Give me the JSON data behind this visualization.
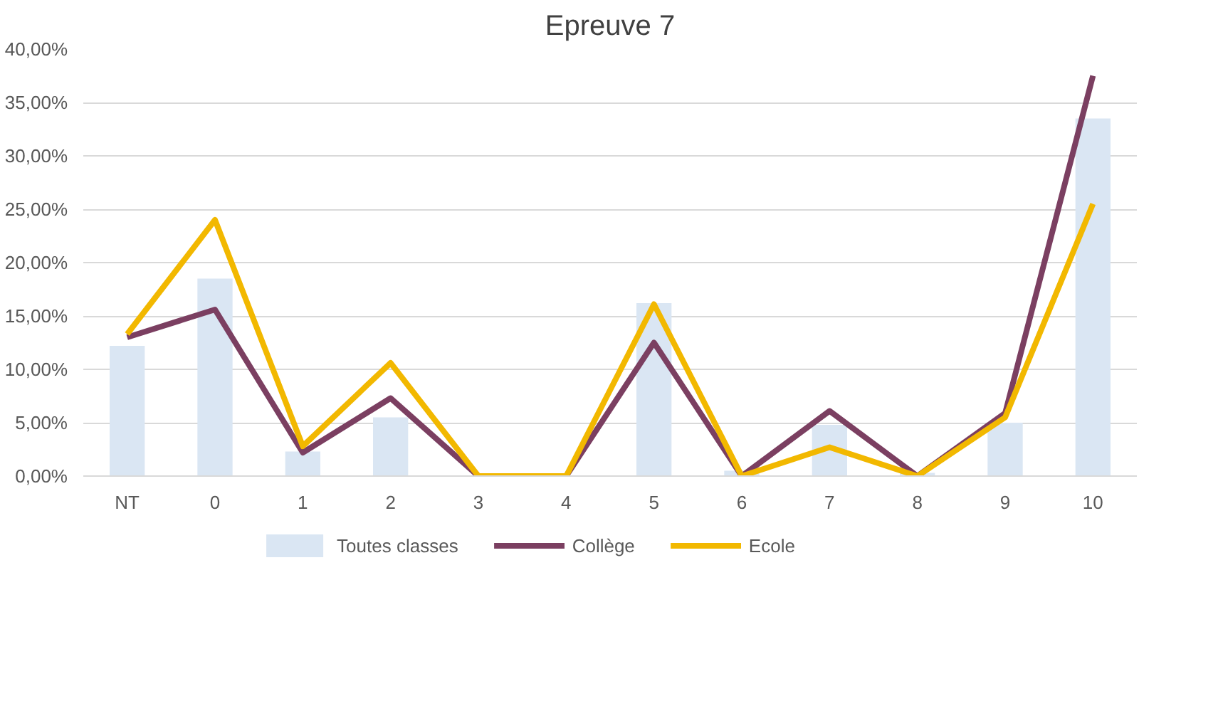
{
  "chart_data": {
    "type": "line",
    "title": "Epreuve 7",
    "categories": [
      "NT",
      "0",
      "1",
      "2",
      "3",
      "4",
      "5",
      "6",
      "7",
      "8",
      "9",
      "10"
    ],
    "series": [
      {
        "name": "Toutes classes",
        "type": "bar",
        "color": "#dae6f3",
        "values": [
          12.2,
          18.5,
          2.3,
          5.5,
          0,
          0,
          16.2,
          0.5,
          4.8,
          0.3,
          5,
          33.5
        ]
      },
      {
        "name": "Collège",
        "color": "#7b3f61",
        "values": [
          13,
          15.6,
          2.2,
          7.3,
          0,
          0,
          12.5,
          0,
          6.1,
          0,
          5.9,
          37.5
        ]
      },
      {
        "name": "Ecole",
        "color": "#f2b800",
        "values": [
          13.3,
          24,
          2.8,
          10.6,
          0,
          0,
          16.1,
          0,
          2.7,
          0,
          5.5,
          25.5
        ]
      }
    ],
    "ylim": [
      0,
      40
    ],
    "yticks": [
      {
        "value": 0,
        "label": "0,00%"
      },
      {
        "value": 5,
        "label": "5,00%"
      },
      {
        "value": 10,
        "label": "10,00%"
      },
      {
        "value": 15,
        "label": "15,00%"
      },
      {
        "value": 20,
        "label": "20,00%"
      },
      {
        "value": 25,
        "label": "25,00%"
      },
      {
        "value": 30,
        "label": "30,00%"
      },
      {
        "value": 35,
        "label": "35,00%"
      },
      {
        "value": 40,
        "label": "40,00%"
      }
    ],
    "grid": "y",
    "legend": "bottom",
    "line_style": "solid",
    "marker": "none"
  }
}
